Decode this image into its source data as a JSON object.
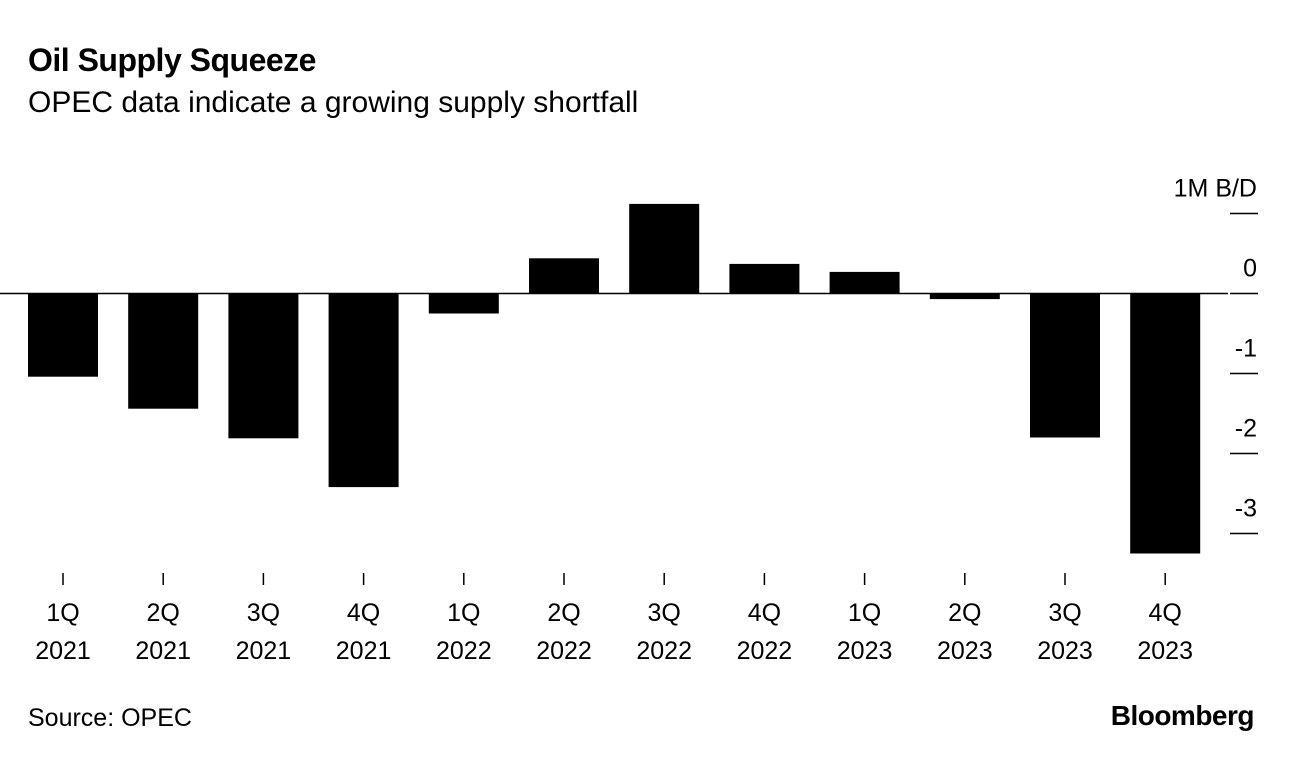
{
  "title": "Oil Supply Squeeze",
  "subtitle": "OPEC data indicate a growing supply shortfall",
  "source": "Source: OPEC",
  "brand": "Bloomberg",
  "colors": {
    "bar": "#000000",
    "background": "#ffffff",
    "axis": "#000000"
  },
  "chart_data": {
    "type": "bar",
    "title": "Oil Supply Squeeze",
    "subtitle": "OPEC data indicate a growing supply shortfall",
    "unit_label": "1M B/D",
    "ylim": [
      -3.3,
      1.1
    ],
    "yticks": [
      1,
      0,
      -1,
      -2,
      -3
    ],
    "ytick_labels": [
      "1M B/D",
      "0",
      "-1",
      "-2",
      "-3"
    ],
    "categories": [
      {
        "quarter": "1Q",
        "year": "2021"
      },
      {
        "quarter": "2Q",
        "year": "2021"
      },
      {
        "quarter": "3Q",
        "year": "2021"
      },
      {
        "quarter": "4Q",
        "year": "2021"
      },
      {
        "quarter": "1Q",
        "year": "2022"
      },
      {
        "quarter": "2Q",
        "year": "2022"
      },
      {
        "quarter": "3Q",
        "year": "2022"
      },
      {
        "quarter": "4Q",
        "year": "2022"
      },
      {
        "quarter": "1Q",
        "year": "2023"
      },
      {
        "quarter": "2Q",
        "year": "2023"
      },
      {
        "quarter": "3Q",
        "year": "2023"
      },
      {
        "quarter": "4Q",
        "year": "2023"
      }
    ],
    "values": [
      -1.04,
      -1.44,
      -1.81,
      -2.42,
      -0.25,
      0.44,
      1.12,
      0.37,
      0.27,
      -0.07,
      -1.8,
      -3.25
    ],
    "xlabel": "",
    "ylabel": "",
    "grid": false,
    "legend": "none"
  }
}
